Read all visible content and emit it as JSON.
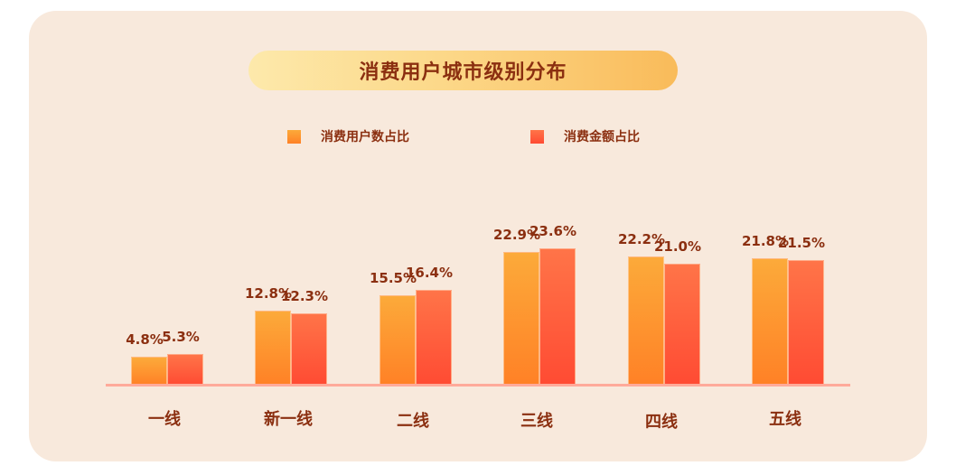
{
  "chart_data": {
    "type": "bar",
    "title": "消费用户城市级别分布",
    "categories": [
      "一线",
      "新一线",
      "二线",
      "三线",
      "四线",
      "五线"
    ],
    "series": [
      {
        "name": "消费用户数占比",
        "values": [
          4.8,
          12.8,
          15.5,
          22.9,
          22.2,
          21.8
        ],
        "color": "#ff9a30"
      },
      {
        "name": "消费金额占比",
        "values": [
          5.3,
          12.3,
          16.4,
          23.6,
          21.0,
          21.5
        ],
        "color": "#ff5e3c"
      }
    ],
    "value_labels": {
      "a": [
        "4.8%",
        "12.8%",
        "15.5%",
        "22.9%",
        "22.2%",
        "21.8%"
      ],
      "b": [
        "5.3%",
        "12.3%",
        "16.4%",
        "23.6%",
        "21.0%",
        "21.5%"
      ]
    },
    "xlabel": "",
    "ylabel": "",
    "unit": "%",
    "grid": false,
    "legend_position": "top",
    "ylim": [
      0,
      25
    ]
  },
  "header": {
    "title": "消费用户城市级别分布"
  },
  "legend": [
    {
      "label": "消费用户数占比"
    },
    {
      "label": "消费金额占比"
    }
  ]
}
